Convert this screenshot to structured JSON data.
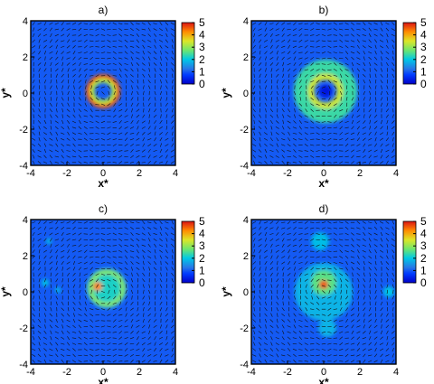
{
  "chart_data": [
    {
      "type": "heatmap",
      "title": "a)",
      "xlabel": "x*",
      "ylabel": "y*",
      "xlim": [
        -4,
        4
      ],
      "ylim": [
        -4,
        4
      ],
      "xticks": [
        "-4",
        "-2",
        "0",
        "2",
        "4"
      ],
      "yticks": [
        "-4",
        "-2",
        "0",
        "2",
        "4"
      ],
      "colorbar": {
        "ticks": [
          "5",
          "4",
          "3",
          "2",
          "1",
          "0"
        ],
        "range": [
          0,
          5
        ]
      },
      "background_level": 1.0,
      "features": [
        {
          "kind": "ring",
          "cx": 0.0,
          "cy": 0.1,
          "r": 0.8,
          "width": 0.3,
          "level": 4.6
        },
        {
          "kind": "ring",
          "cx": 0.0,
          "cy": 0.1,
          "r": 0.6,
          "width": 0.25,
          "level": 3.2
        }
      ]
    },
    {
      "type": "heatmap",
      "title": "b)",
      "xlabel": "x*",
      "ylabel": "y*",
      "xlim": [
        -4,
        4
      ],
      "ylim": [
        -4,
        4
      ],
      "xticks": [
        "-4",
        "-2",
        "0",
        "2",
        "4"
      ],
      "yticks": [
        "-4",
        "-2",
        "0",
        "2",
        "4"
      ],
      "colorbar": {
        "ticks": [
          "5",
          "4",
          "3",
          "2",
          "1",
          "0"
        ],
        "range": [
          0,
          5
        ]
      },
      "background_level": 1.0,
      "features": [
        {
          "kind": "ring",
          "cx": 0.1,
          "cy": 0.1,
          "r": 1.3,
          "width": 0.9,
          "level": 2.4
        },
        {
          "kind": "ring",
          "cx": 0.1,
          "cy": 0.1,
          "r": 0.8,
          "width": 0.35,
          "level": 3.4
        },
        {
          "kind": "blob",
          "cx": 0.1,
          "cy": 0.1,
          "r": 0.35,
          "level": 0.3
        }
      ]
    },
    {
      "type": "heatmap",
      "title": "c)",
      "xlabel": "x*",
      "ylabel": "y*",
      "xlim": [
        -4,
        4
      ],
      "ylim": [
        -4,
        4
      ],
      "xticks": [
        "-4",
        "-2",
        "0",
        "2",
        "4"
      ],
      "yticks": [
        "-4",
        "-2",
        "0",
        "2",
        "4"
      ],
      "colorbar": {
        "ticks": [
          "5",
          "4",
          "3",
          "2",
          "1",
          "0"
        ],
        "range": [
          0,
          5
        ]
      },
      "background_level": 1.0,
      "features": [
        {
          "kind": "blob",
          "cx": 0.2,
          "cy": 0.2,
          "r": 1.1,
          "level": 2.2
        },
        {
          "kind": "ring",
          "cx": 0.2,
          "cy": 0.2,
          "r": 0.9,
          "width": 0.25,
          "level": 2.9
        },
        {
          "kind": "blob",
          "cx": -0.3,
          "cy": 0.3,
          "r": 0.25,
          "level": 4.3
        },
        {
          "kind": "blob",
          "cx": -3.2,
          "cy": 0.5,
          "r": 0.2,
          "level": 2.0
        },
        {
          "kind": "blob",
          "cx": -2.5,
          "cy": 0.1,
          "r": 0.15,
          "level": 2.0
        },
        {
          "kind": "blob",
          "cx": -3.0,
          "cy": 2.8,
          "r": 0.15,
          "level": 2.0
        }
      ]
    },
    {
      "type": "heatmap",
      "title": "d)",
      "xlabel": "x*",
      "ylabel": "y*",
      "xlim": [
        -4,
        4
      ],
      "ylim": [
        -4,
        4
      ],
      "xticks": [
        "-4",
        "-2",
        "0",
        "2",
        "4"
      ],
      "yticks": [
        "-4",
        "-2",
        "0",
        "2",
        "4"
      ],
      "colorbar": {
        "ticks": [
          "5",
          "4",
          "3",
          "2",
          "1",
          "0"
        ],
        "range": [
          0,
          5
        ]
      },
      "background_level": 1.0,
      "features": [
        {
          "kind": "blob",
          "cx": 0.0,
          "cy": 0.0,
          "r": 1.6,
          "level": 1.8
        },
        {
          "kind": "blob",
          "cx": 0.0,
          "cy": 0.5,
          "r": 0.7,
          "level": 2.6
        },
        {
          "kind": "blob",
          "cx": 0.0,
          "cy": 0.4,
          "r": 0.25,
          "level": 4.6
        },
        {
          "kind": "blob",
          "cx": -0.2,
          "cy": 2.8,
          "r": 0.5,
          "level": 1.9
        },
        {
          "kind": "blob",
          "cx": 0.2,
          "cy": -2.0,
          "r": 0.5,
          "level": 1.8
        },
        {
          "kind": "blob",
          "cx": 3.6,
          "cy": 0.0,
          "r": 0.3,
          "level": 2.0
        }
      ]
    }
  ]
}
